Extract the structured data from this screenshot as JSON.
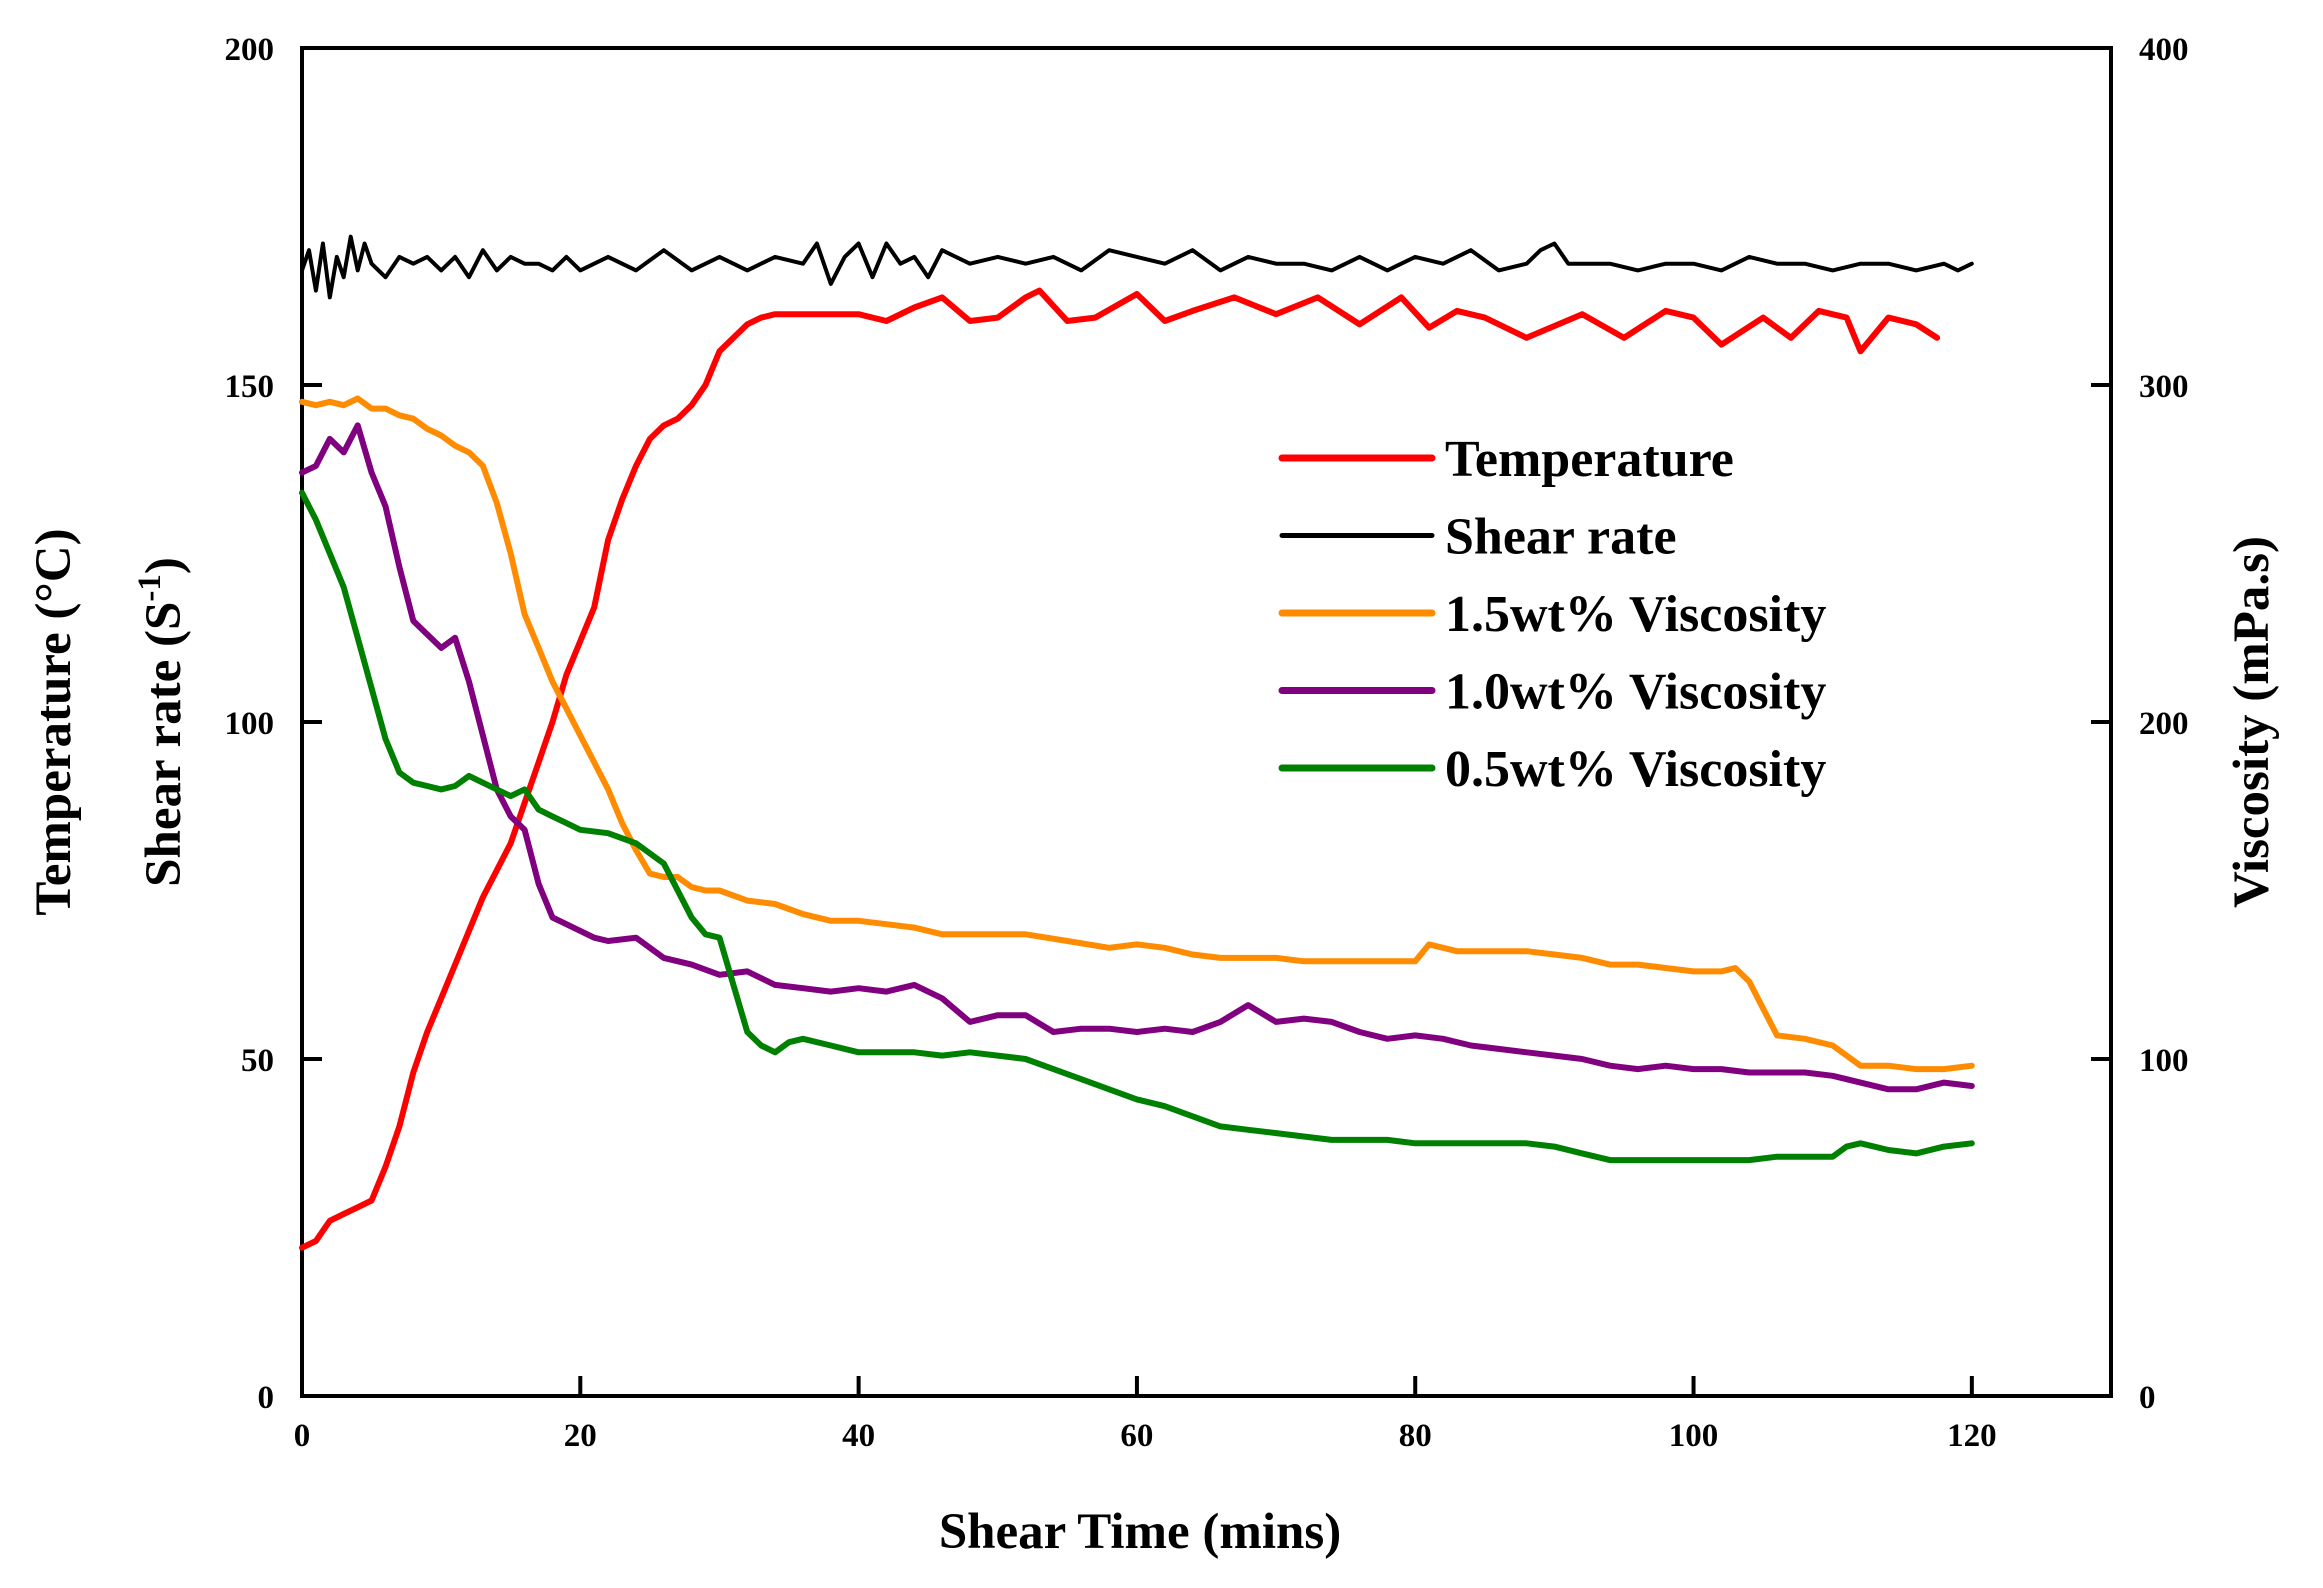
{
  "chart_data": {
    "type": "line",
    "xlabel": "Shear Time (mins)",
    "ylabel_left_line1": "Temperature (°C)",
    "ylabel_left_line2_main": "Shear rate (S",
    "ylabel_left_line2_sup": "-1",
    "ylabel_left_line2_end": ")",
    "ylabel_right": "Viscosity (mPa.s)",
    "xlim": [
      0,
      130
    ],
    "ylim_left": [
      0,
      200
    ],
    "ylim_right": [
      0,
      400
    ],
    "x_ticks": [
      "0",
      "20",
      "40",
      "60",
      "80",
      "100",
      "120"
    ],
    "y_left_ticks": [
      "0",
      "50",
      "100",
      "150",
      "200"
    ],
    "y_right_ticks": [
      "0",
      "100",
      "200",
      "300",
      "400"
    ],
    "legend_position": "upper-right",
    "series": [
      {
        "name": "Temperature",
        "color": "#ff0000",
        "axis": "left",
        "x": [
          0,
          1,
          2,
          3,
          4,
          5,
          6,
          7,
          8,
          9,
          10,
          11,
          12,
          13,
          14,
          15,
          16,
          17,
          18,
          19,
          20,
          21,
          22,
          23,
          24,
          25,
          26,
          27,
          28,
          29,
          30,
          31,
          32,
          33,
          34,
          35,
          36,
          38,
          40,
          42,
          44,
          46,
          48,
          50,
          52,
          53,
          55,
          57,
          60,
          62,
          64,
          67,
          70,
          73,
          76,
          79,
          81,
          83,
          85,
          88,
          92,
          95,
          98,
          100,
          102,
          105,
          107,
          109,
          111,
          112,
          114,
          116,
          117.5
        ],
        "y": [
          22,
          23,
          26,
          27,
          28,
          29,
          34,
          40,
          48,
          54,
          59,
          64,
          69,
          74,
          78,
          82,
          88,
          94,
          100,
          107,
          112,
          117,
          127,
          133,
          138,
          142,
          144,
          145,
          147,
          150,
          155,
          157,
          159,
          160,
          160.5,
          160.5,
          160.5,
          160.5,
          160.5,
          159.5,
          161.5,
          163,
          159.5,
          160,
          163,
          164,
          159.5,
          160,
          163.5,
          159.5,
          161,
          163,
          160.5,
          163,
          159,
          163,
          158.5,
          161,
          160,
          157,
          160.5,
          157,
          161,
          160,
          156,
          160,
          157,
          161,
          160,
          155,
          160,
          159,
          157
        ]
      },
      {
        "name": "Shear rate",
        "color": "#000000",
        "axis": "left",
        "x": [
          0,
          0.5,
          1,
          1.5,
          2,
          2.5,
          3,
          3.5,
          4,
          4.5,
          5,
          6,
          7,
          8,
          9,
          10,
          11,
          12,
          13,
          14,
          15,
          16,
          17,
          18,
          19,
          20,
          22,
          24,
          26,
          28,
          30,
          32,
          34,
          36,
          37,
          38,
          39,
          40,
          41,
          42,
          43,
          44,
          45,
          46,
          48,
          50,
          52,
          54,
          56,
          58,
          60,
          62,
          64,
          66,
          68,
          70,
          72,
          74,
          76,
          78,
          80,
          82,
          84,
          86,
          88,
          89,
          90,
          91,
          92,
          94,
          96,
          98,
          100,
          102,
          104,
          106,
          108,
          110,
          112,
          114,
          116,
          118,
          119,
          120
        ],
        "y": [
          167,
          170,
          164,
          171,
          163,
          169,
          166,
          172,
          167,
          171,
          168,
          166,
          169,
          168,
          169,
          167,
          169,
          166,
          170,
          167,
          169,
          168,
          168,
          167,
          169,
          167,
          169,
          167,
          170,
          167,
          169,
          167,
          169,
          168,
          171,
          165,
          169,
          171,
          166,
          171,
          168,
          169,
          166,
          170,
          168,
          169,
          168,
          169,
          167,
          170,
          169,
          168,
          170,
          167,
          169,
          168,
          168,
          167,
          169,
          167,
          169,
          168,
          170,
          167,
          168,
          170,
          171,
          168,
          168,
          168,
          167,
          168,
          168,
          167,
          169,
          168,
          168,
          167,
          168,
          168,
          167,
          168,
          167,
          168
        ]
      },
      {
        "name": "1.5wt% Viscosity",
        "color": "#ff8c00",
        "axis": "right",
        "x": [
          0,
          1,
          2,
          3,
          4,
          5,
          6,
          7,
          8,
          9,
          10,
          11,
          12,
          13,
          14,
          15,
          16,
          17,
          18,
          19,
          20,
          21,
          22,
          23,
          24,
          25,
          26,
          27,
          28,
          29,
          30,
          32,
          34,
          36,
          38,
          40,
          42,
          44,
          46,
          48,
          50,
          52,
          55,
          58,
          60,
          62,
          64,
          66,
          68,
          70,
          72,
          74,
          76,
          78,
          80,
          81,
          83,
          85,
          88,
          90,
          92,
          94,
          96,
          98,
          100,
          102,
          103,
          104,
          105,
          106,
          108,
          110,
          112,
          114,
          116,
          118,
          120
        ],
        "y": [
          295,
          294,
          295,
          294,
          296,
          293,
          293,
          291,
          290,
          287,
          285,
          282,
          280,
          276,
          265,
          250,
          232,
          222,
          212,
          204,
          196,
          188,
          180,
          170,
          162,
          155,
          154,
          154,
          151,
          150,
          150,
          147,
          146,
          143,
          141,
          141,
          140,
          139,
          137,
          137,
          137,
          137,
          135,
          133,
          134,
          133,
          131,
          130,
          130,
          130,
          129,
          129,
          129,
          129,
          129,
          134,
          132,
          132,
          132,
          131,
          130,
          128,
          128,
          127,
          126,
          126,
          127,
          123,
          115,
          107,
          106,
          104,
          98,
          98,
          97,
          97,
          98
        ]
      },
      {
        "name": "1.0wt% Viscosity",
        "color": "#800080",
        "axis": "right",
        "x": [
          0,
          1,
          2,
          3,
          4,
          5,
          6,
          7,
          8,
          9,
          10,
          11,
          12,
          13,
          14,
          15,
          16,
          17,
          18,
          19,
          20,
          21,
          22,
          24,
          26,
          28,
          30,
          32,
          34,
          36,
          38,
          40,
          42,
          44,
          46,
          48,
          50,
          52,
          54,
          56,
          58,
          60,
          62,
          64,
          66,
          68,
          70,
          72,
          74,
          76,
          78,
          80,
          82,
          84,
          86,
          88,
          90,
          92,
          94,
          96,
          98,
          100,
          102,
          104,
          106,
          108,
          110,
          112,
          114,
          116,
          118,
          120
        ],
        "y": [
          274,
          276,
          284,
          280,
          288,
          274,
          264,
          246,
          230,
          226,
          222,
          225,
          212,
          196,
          180,
          172,
          168,
          152,
          142,
          140,
          138,
          136,
          135,
          136,
          130,
          128,
          125,
          126,
          122,
          121,
          120,
          121,
          120,
          122,
          118,
          111,
          113,
          113,
          108,
          109,
          109,
          108,
          109,
          108,
          111,
          116,
          111,
          112,
          111,
          108,
          106,
          107,
          106,
          104,
          103,
          102,
          101,
          100,
          98,
          97,
          98,
          97,
          97,
          96,
          96,
          96,
          95,
          93,
          91,
          91,
          93,
          92
        ]
      },
      {
        "name": "0.5wt% Viscosity",
        "color": "#008000",
        "axis": "right",
        "x": [
          0,
          1,
          2,
          3,
          4,
          5,
          6,
          7,
          8,
          9,
          10,
          11,
          12,
          13,
          14,
          15,
          16,
          17,
          18,
          19,
          20,
          22,
          24,
          26,
          27,
          28,
          29,
          30,
          31,
          32,
          33,
          34,
          35,
          36,
          38,
          40,
          42,
          44,
          46,
          48,
          50,
          52,
          54,
          56,
          58,
          60,
          62,
          64,
          66,
          68,
          70,
          72,
          74,
          76,
          78,
          80,
          82,
          84,
          86,
          88,
          90,
          92,
          94,
          96,
          98,
          100,
          102,
          104,
          106,
          108,
          110,
          111,
          112,
          114,
          116,
          118,
          120
        ],
        "y": [
          268,
          260,
          250,
          240,
          225,
          210,
          195,
          185,
          182,
          181,
          180,
          181,
          184,
          182,
          180,
          178,
          180,
          174,
          172,
          170,
          168,
          167,
          164,
          158,
          150,
          142,
          137,
          136,
          122,
          108,
          104,
          102,
          105,
          106,
          104,
          102,
          102,
          102,
          101,
          102,
          101,
          100,
          97,
          94,
          91,
          88,
          86,
          83,
          80,
          79,
          78,
          77,
          76,
          76,
          76,
          75,
          75,
          75,
          75,
          75,
          74,
          72,
          70,
          70,
          70,
          70,
          70,
          70,
          71,
          71,
          71,
          74,
          75,
          73,
          72,
          74,
          75
        ]
      }
    ]
  }
}
